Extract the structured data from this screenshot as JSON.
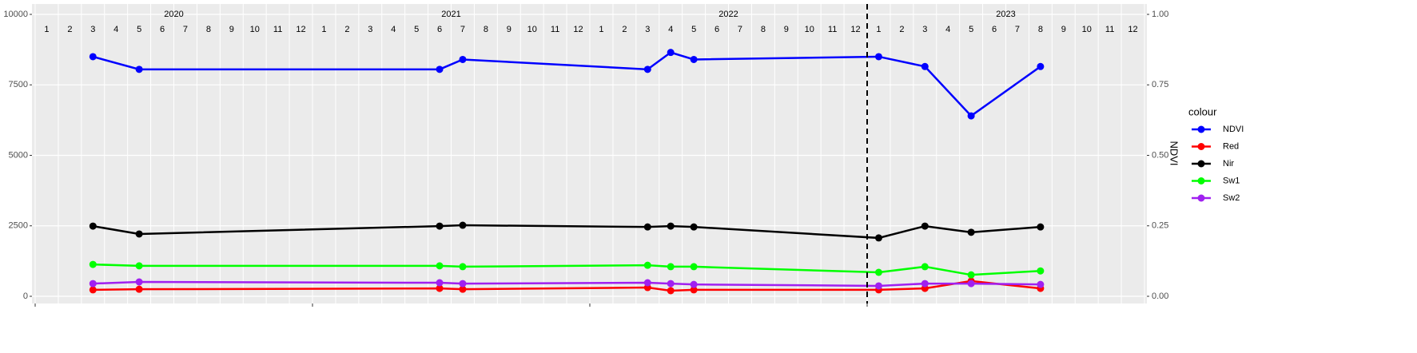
{
  "chart_data": {
    "type": "line",
    "x": [
      "2020-03",
      "2020-05",
      "2021-06",
      "2021-07",
      "2022-03",
      "2022-04",
      "2022-05",
      "2023-01",
      "2023-03",
      "2023-05",
      "2023-08"
    ],
    "xlim": [
      "2020-01",
      "2023-12"
    ],
    "xticks": [
      "2020-01",
      "2021-01",
      "2022-01",
      "2023-01"
    ],
    "years": [
      "2020",
      "2021",
      "2022",
      "2023"
    ],
    "months": [
      "1",
      "2",
      "3",
      "4",
      "5",
      "6",
      "7",
      "8",
      "9",
      "10",
      "11",
      "12"
    ],
    "vline": "2023-01",
    "ylim": [
      0,
      10000
    ],
    "yticks": [
      0,
      2500,
      5000,
      7500,
      10000
    ],
    "y2lim": [
      0,
      1
    ],
    "y2ticks": [
      {
        "value": 0,
        "label": "0.00"
      },
      {
        "value": 0.25,
        "label": "0.25"
      },
      {
        "value": 0.5,
        "label": "0.50"
      },
      {
        "value": 0.75,
        "label": "0.75"
      },
      {
        "value": 1,
        "label": "1.00"
      }
    ],
    "y2label": "NDVI",
    "legend_title": "colour",
    "legend_position": "right",
    "grid": true,
    "series": [
      {
        "name": "NDVI",
        "color": "#0000ff",
        "axis": "y2",
        "values": [
          0.85,
          0.805,
          0.805,
          0.84,
          0.805,
          0.865,
          0.84,
          0.85,
          0.815,
          0.64,
          0.815
        ]
      },
      {
        "name": "Red",
        "color": "#ff0000",
        "values": [
          230,
          250,
          280,
          250,
          310,
          200,
          230,
          230,
          280,
          540,
          280
        ]
      },
      {
        "name": "Nir",
        "color": "#000000",
        "values": [
          2490,
          2210,
          2490,
          2520,
          2460,
          2490,
          2460,
          2070,
          2490,
          2270,
          2460
        ]
      },
      {
        "name": "Sw1",
        "color": "#00ff00",
        "values": [
          1130,
          1080,
          1080,
          1050,
          1100,
          1050,
          1050,
          850,
          1050,
          760,
          900
        ]
      },
      {
        "name": "Sw2",
        "color": "#a020f0",
        "values": [
          450,
          510,
          480,
          450,
          480,
          450,
          420,
          370,
          450,
          450,
          420
        ]
      }
    ]
  }
}
